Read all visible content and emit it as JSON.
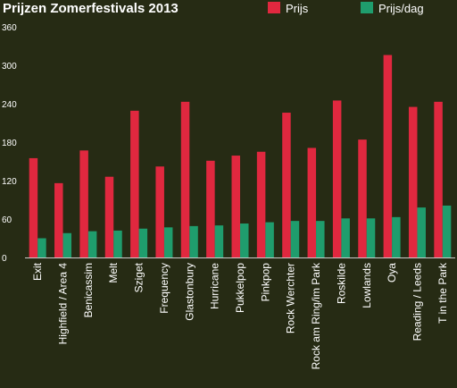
{
  "chart_data": {
    "type": "bar",
    "title": "Prijzen Zomerfestivals 2013",
    "xlabel": "",
    "ylabel": "",
    "ylim": [
      0,
      360
    ],
    "yticks": [
      0,
      60,
      120,
      180,
      240,
      300,
      360
    ],
    "grid": false,
    "legend_position": "top-right",
    "categories": [
      "Exit",
      "Highfield / Area 4",
      "Benicassim",
      "Melt",
      "Sziget",
      "Frequency",
      "Glastonbury",
      "Hurricane",
      "Pukkelpop",
      "Pinkpop",
      "Rock Werchter",
      "Rock am Ring/im Park",
      "Roskilde",
      "Lowlands",
      "Oya",
      "Reading / Leeds",
      "T in the Park"
    ],
    "series": [
      {
        "name": "Prijs",
        "color": "#e0283f",
        "values": [
          155,
          116,
          167,
          126,
          229,
          142,
          243,
          151,
          159,
          165,
          226,
          171,
          245,
          184,
          316,
          235,
          243
        ]
      },
      {
        "name": "Prijs/dag",
        "color": "#1f9d6d",
        "values": [
          30,
          38,
          41,
          42,
          45,
          47,
          49,
          50,
          53,
          55,
          57,
          57,
          61,
          61,
          63,
          78,
          81
        ]
      }
    ]
  }
}
